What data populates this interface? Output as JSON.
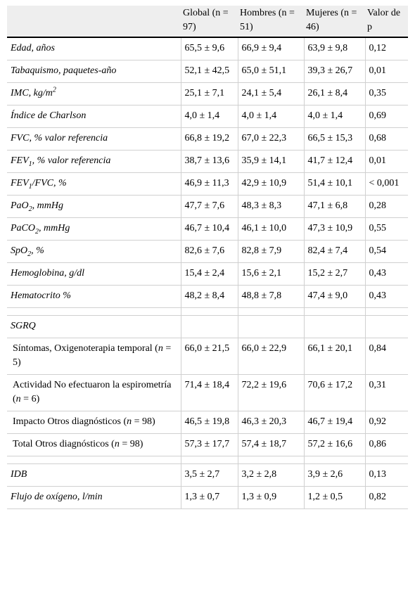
{
  "header": {
    "col1": "",
    "col2": "Global (n = 97)",
    "col3": "Hombres (n = 51)",
    "col4": "Mujeres (n = 46)",
    "col5": "Valor de p"
  },
  "rows": [
    {
      "label": "Edad, años",
      "g": "65,5 ± 9,6",
      "h": "66,9 ± 9,4",
      "m": "63,9 ± 9,8",
      "p": "0,12"
    },
    {
      "label": "Tabaquismo, paquetes-año",
      "g": "52,1 ± 42,5",
      "h": "65,0 ± 51,1",
      "m": "39,3 ± 26,7",
      "p": "0,01"
    },
    {
      "label": "IMC, kg/m",
      "sup": "2",
      "g": "25,1 ± 7,1",
      "h": "24,1 ± 5,4",
      "m": "26,1 ± 8,4",
      "p": "0,35"
    },
    {
      "label": "Índice de Charlson",
      "g": "4,0 ± 1,4",
      "h": "4,0 ± 1,4",
      "m": "4,0 ± 1,4",
      "p": "0,69"
    },
    {
      "label": "FVC, % valor referencia",
      "g": "66,8 ± 19,2",
      "h": "67,0 ± 22,3",
      "m": "66,5 ± 15,3",
      "p": "0,68"
    },
    {
      "label_a": "FEV",
      "label_sub": "1",
      "label_b": ", % valor referencia",
      "g": "38,7 ± 13,6",
      "h": "35,9 ± 14,1",
      "m": "41,7 ± 12,4",
      "p": "0,01"
    },
    {
      "label_a": "FEV",
      "label_sub": "1",
      "label_b": "/FVC, %",
      "g": "46,9 ± 11,3",
      "h": "42,9 ± 10,9",
      "m": "51,4 ± 10,1",
      "p": "< 0,001"
    },
    {
      "label_a": "PaO",
      "label_sub": "2",
      "label_b": ", mmHg",
      "g": "47,7 ± 7,6",
      "h": "48,3 ± 8,3",
      "m": "47,1 ± 6,8",
      "p": "0,28"
    },
    {
      "label_a": "PaCO",
      "label_sub": "2",
      "label_b": ", mmHg",
      "g": "46,7 ± 10,4",
      "h": "46,1 ± 10,0",
      "m": "47,3 ± 10,9",
      "p": "0,55"
    },
    {
      "label_a": "SpO",
      "label_sub": "2",
      "label_b": ", %",
      "g": "82,6 ± 7,6",
      "h": "82,8 ± 7,9",
      "m": "82,4 ± 7,4",
      "p": "0,54"
    },
    {
      "label": "Hemoglobina, g/dl",
      "g": "15,4 ± 2,4",
      "h": "15,6 ± 2,1",
      "m": "15,2 ± 2,7",
      "p": "0,43"
    },
    {
      "label": "Hematocrito %",
      "g": "48,2 ± 8,4",
      "h": "48,8 ± 7,8",
      "m": "47,4 ± 9,0",
      "p": "0,43"
    }
  ],
  "sgrq": {
    "title": "SGRQ",
    "rows": [
      {
        "a": "Síntomas, Oxigenoterapia temporal (",
        "n": "n",
        "b": " = 5)",
        "g": "66,0 ± 21,5",
        "h": "66,0 ± 22,9",
        "m": "66,1 ± 20,1",
        "p": "0,84"
      },
      {
        "a": "Actividad No efectuaron la espirometría (",
        "n": "n",
        "b": " = 6)",
        "g": "71,4 ± 18,4",
        "h": "72,2 ± 19,6",
        "m": "70,6 ± 17,2",
        "p": "0,31"
      },
      {
        "a": "Impacto Otros diagnósticos (",
        "n": "n",
        "b": " = 98)",
        "g": "46,5 ± 19,8",
        "h": "46,3 ± 20,3",
        "m": "46,7 ± 19,4",
        "p": "0,92"
      },
      {
        "a": "Total Otros diagnósticos (",
        "n": "n",
        "b": " = 98)",
        "g": "57,3 ± 17,7",
        "h": "57,4 ± 18,7",
        "m": "57,2 ± 16,6",
        "p": "0,86"
      }
    ]
  },
  "tail": [
    {
      "label": "IDB",
      "g": "3,5 ± 2,7",
      "h": "3,2 ± 2,8",
      "m": "3,9 ± 2,6",
      "p": "0,13"
    },
    {
      "label": "Flujo de oxígeno, l/min",
      "g": "1,3 ± 0,7",
      "h": "1,3 ± 0,9",
      "m": "1,2 ± 0,5",
      "p": "0,82"
    }
  ]
}
